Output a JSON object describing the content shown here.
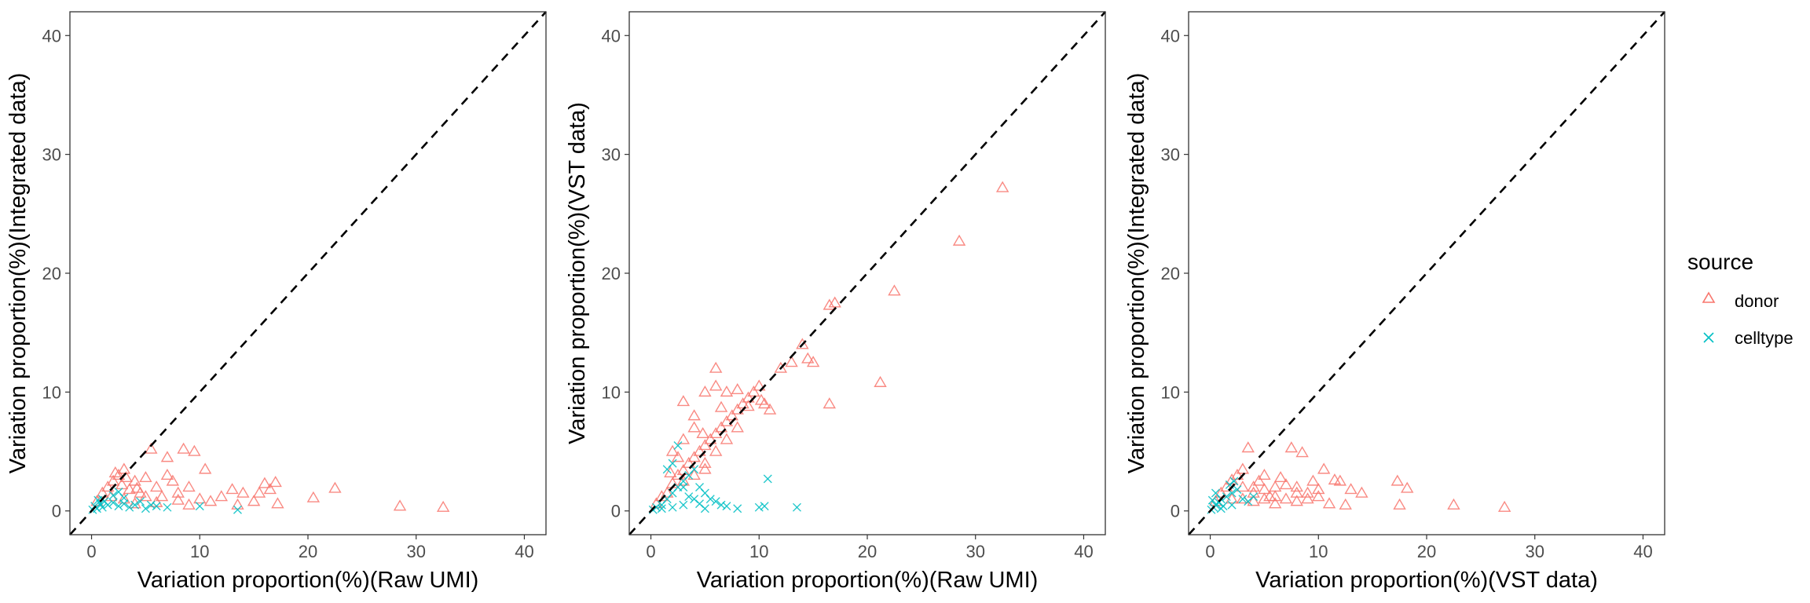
{
  "legend": {
    "title": "source",
    "entries": [
      {
        "label": "donor",
        "color": "#F8766D",
        "shape": "triangle-open"
      },
      {
        "label": "celltype",
        "color": "#00BFC4",
        "shape": "cross"
      }
    ]
  },
  "chart_data": [
    {
      "type": "scatter",
      "xlabel": "Variation proportion(%)(Raw UMI)",
      "ylabel": "Variation proportion(%)(Integrated data)",
      "xlim": [
        -2,
        42
      ],
      "ylim": [
        -2,
        42
      ],
      "ticks": [
        0,
        10,
        20,
        30,
        40
      ],
      "reference_line": "y = x (dashed)",
      "series": [
        {
          "name": "donor",
          "points": [
            [
              0.5,
              0.8
            ],
            [
              1,
              1.5
            ],
            [
              1.5,
              2
            ],
            [
              2,
              2.5
            ],
            [
              2.5,
              3
            ],
            [
              3,
              3.5
            ],
            [
              2.8,
              2.2
            ],
            [
              3.5,
              1.8
            ],
            [
              4,
              2.5
            ],
            [
              4.5,
              1.5
            ],
            [
              5,
              2.8
            ],
            [
              5.5,
              5.2
            ],
            [
              6,
              2
            ],
            [
              6.5,
              1.2
            ],
            [
              7,
              3
            ],
            [
              7.5,
              2.5
            ],
            [
              7,
              4.5
            ],
            [
              8,
              1.5
            ],
            [
              8.5,
              5.2
            ],
            [
              9,
              2
            ],
            [
              9.5,
              5
            ],
            [
              10,
              1
            ],
            [
              10.5,
              3.5
            ],
            [
              11,
              0.8
            ],
            [
              12,
              1.2
            ],
            [
              13,
              1.8
            ],
            [
              13.5,
              0.5
            ],
            [
              14,
              1.5
            ],
            [
              15,
              0.8
            ],
            [
              15.5,
              1.5
            ],
            [
              16,
              2.3
            ],
            [
              16.5,
              1.8
            ],
            [
              17,
              2.4
            ],
            [
              17.2,
              0.6
            ],
            [
              20.5,
              1.1
            ],
            [
              22.5,
              1.9
            ],
            [
              28.5,
              0.4
            ],
            [
              32.5,
              0.3
            ],
            [
              3,
              1
            ],
            [
              4,
              0.6
            ],
            [
              5,
              1.2
            ],
            [
              6,
              0.7
            ],
            [
              8,
              0.9
            ],
            [
              9,
              0.5
            ],
            [
              1.8,
              1.2
            ],
            [
              2.2,
              3.2
            ],
            [
              3.2,
              2.8
            ],
            [
              4.2,
              1.9
            ]
          ]
        },
        {
          "name": "celltype",
          "points": [
            [
              0.1,
              0.1
            ],
            [
              0.3,
              0.4
            ],
            [
              0.5,
              0.2
            ],
            [
              0.8,
              0.6
            ],
            [
              1,
              0.3
            ],
            [
              1.2,
              0.8
            ],
            [
              1.5,
              0.5
            ],
            [
              2,
              0.7
            ],
            [
              2.5,
              0.4
            ],
            [
              3,
              0.6
            ],
            [
              3.5,
              0.3
            ],
            [
              4,
              0.5
            ],
            [
              4.5,
              0.8
            ],
            [
              5,
              0.2
            ],
            [
              6,
              0.4
            ],
            [
              2,
              1.3
            ],
            [
              2.5,
              1.6
            ],
            [
              3,
              1.1
            ],
            [
              1,
              1
            ],
            [
              0.6,
              0.9
            ],
            [
              10,
              0.4
            ],
            [
              13.5,
              0.1
            ],
            [
              7,
              0.3
            ],
            [
              5.5,
              0.5
            ]
          ]
        }
      ]
    },
    {
      "type": "scatter",
      "xlabel": "Variation proportion(%)(Raw UMI)",
      "ylabel": "Variation proportion(%)(VST data)",
      "xlim": [
        -2,
        42
      ],
      "ylim": [
        -2,
        42
      ],
      "ticks": [
        0,
        10,
        20,
        30,
        40
      ],
      "reference_line": "y = x (dashed)",
      "series": [
        {
          "name": "donor",
          "points": [
            [
              0.5,
              0.6
            ],
            [
              1,
              1.2
            ],
            [
              1.5,
              1.5
            ],
            [
              2,
              2.3
            ],
            [
              2.5,
              3
            ],
            [
              3,
              3.4
            ],
            [
              3.5,
              4
            ],
            [
              4,
              4.5
            ],
            [
              4.5,
              5
            ],
            [
              5,
              5.5
            ],
            [
              5.5,
              6
            ],
            [
              6,
              6.5
            ],
            [
              6.5,
              7
            ],
            [
              7,
              7.5
            ],
            [
              7.5,
              8
            ],
            [
              8,
              8.5
            ],
            [
              8.5,
              9
            ],
            [
              9,
              9.5
            ],
            [
              9.5,
              10
            ],
            [
              10,
              10.5
            ],
            [
              10.5,
              9
            ],
            [
              11,
              8.5
            ],
            [
              12,
              12
            ],
            [
              13,
              12.5
            ],
            [
              14,
              14
            ],
            [
              14.5,
              12.8
            ],
            [
              15,
              12.5
            ],
            [
              16.5,
              17.3
            ],
            [
              17,
              17.5
            ],
            [
              16.5,
              9
            ],
            [
              21.2,
              10.8
            ],
            [
              22.5,
              18.5
            ],
            [
              28.5,
              22.7
            ],
            [
              32.5,
              27.2
            ],
            [
              6,
              12
            ],
            [
              5,
              10
            ],
            [
              3,
              9.2
            ],
            [
              4,
              8
            ],
            [
              6,
              10.5
            ],
            [
              7,
              10
            ],
            [
              8,
              10.2
            ],
            [
              2,
              5
            ],
            [
              3,
              6
            ],
            [
              4,
              7
            ],
            [
              5,
              4
            ],
            [
              6,
              5
            ],
            [
              7,
              6
            ],
            [
              8,
              7
            ],
            [
              3,
              2.5
            ],
            [
              4,
              3
            ],
            [
              5,
              3.5
            ],
            [
              2.5,
              4.5
            ],
            [
              1.8,
              3.2
            ],
            [
              4.8,
              6.5
            ],
            [
              6.5,
              8.7
            ],
            [
              9,
              8.8
            ],
            [
              10.2,
              9.3
            ]
          ]
        },
        {
          "name": "celltype",
          "points": [
            [
              0.2,
              0.1
            ],
            [
              0.5,
              0.3
            ],
            [
              1,
              0.5
            ],
            [
              1.5,
              1
            ],
            [
              2,
              1.5
            ],
            [
              2.5,
              2
            ],
            [
              3,
              2.5
            ],
            [
              3.5,
              3
            ],
            [
              4,
              3.5
            ],
            [
              4.5,
              2
            ],
            [
              5,
              1.5
            ],
            [
              5.5,
              1
            ],
            [
              6,
              0.8
            ],
            [
              6.5,
              0.5
            ],
            [
              4,
              1
            ],
            [
              3,
              0.5
            ],
            [
              2,
              0.3
            ],
            [
              2,
              4
            ],
            [
              2.5,
              5.5
            ],
            [
              1.5,
              3.5
            ],
            [
              3,
              2
            ],
            [
              8,
              0.2
            ],
            [
              10,
              0.3
            ],
            [
              10.5,
              0.4
            ],
            [
              10.8,
              2.7
            ],
            [
              13.5,
              0.3
            ],
            [
              5,
              0.2
            ],
            [
              7,
              0.4
            ],
            [
              1,
              0.2
            ],
            [
              3.5,
              1.2
            ],
            [
              4.5,
              0.6
            ]
          ]
        }
      ]
    },
    {
      "type": "scatter",
      "xlabel": "Variation proportion(%)(VST data)",
      "ylabel": "Variation proportion(%)(Integrated data)",
      "xlim": [
        -2,
        42
      ],
      "ylim": [
        -2,
        42
      ],
      "ticks": [
        0,
        10,
        20,
        30,
        40
      ],
      "reference_line": "y = x (dashed)",
      "series": [
        {
          "name": "donor",
          "points": [
            [
              0.5,
              0.8
            ],
            [
              1,
              1.5
            ],
            [
              1.5,
              2
            ],
            [
              2,
              2.6
            ],
            [
              2.5,
              3
            ],
            [
              3,
              3.5
            ],
            [
              3.5,
              5.3
            ],
            [
              4,
              1.5
            ],
            [
              4.5,
              2.5
            ],
            [
              5,
              3
            ],
            [
              5.5,
              1.2
            ],
            [
              6,
              2
            ],
            [
              6.5,
              2.8
            ],
            [
              7,
              1
            ],
            [
              7.5,
              5.3
            ],
            [
              8,
              2
            ],
            [
              8.5,
              4.9
            ],
            [
              9,
              1.5
            ],
            [
              9.5,
              2.5
            ],
            [
              10,
              1.2
            ],
            [
              10.5,
              3.5
            ],
            [
              11,
              0.6
            ],
            [
              11.5,
              2.6
            ],
            [
              12,
              2.5
            ],
            [
              12.5,
              0.5
            ],
            [
              13,
              1.8
            ],
            [
              14,
              1.5
            ],
            [
              17.3,
              2.5
            ],
            [
              17.5,
              0.5
            ],
            [
              18.2,
              1.9
            ],
            [
              22.5,
              0.5
            ],
            [
              27.2,
              0.3
            ],
            [
              3,
              1
            ],
            [
              4,
              0.8
            ],
            [
              5,
              1.8
            ],
            [
              6,
              1.2
            ],
            [
              7,
              2.2
            ],
            [
              8,
              0.8
            ],
            [
              9,
              1
            ],
            [
              10,
              1.8
            ],
            [
              2,
              1
            ],
            [
              3,
              2
            ],
            [
              4,
              2
            ],
            [
              5,
              1
            ],
            [
              6,
              0.6
            ],
            [
              8,
              1.5
            ]
          ]
        },
        {
          "name": "celltype",
          "points": [
            [
              0.1,
              0.1
            ],
            [
              0.3,
              0.3
            ],
            [
              0.5,
              0.5
            ],
            [
              0.8,
              0.7
            ],
            [
              1,
              1
            ],
            [
              1.2,
              0.4
            ],
            [
              1.5,
              1.2
            ],
            [
              2,
              1.5
            ],
            [
              2.5,
              1.8
            ],
            [
              3,
              1
            ],
            [
              3.5,
              0.8
            ],
            [
              4,
              1.2
            ],
            [
              1.8,
              2.2
            ],
            [
              2.2,
              2.5
            ],
            [
              0.5,
              1.5
            ],
            [
              0.2,
              0.9
            ],
            [
              1,
              0.2
            ],
            [
              2,
              0.5
            ]
          ]
        }
      ]
    }
  ]
}
